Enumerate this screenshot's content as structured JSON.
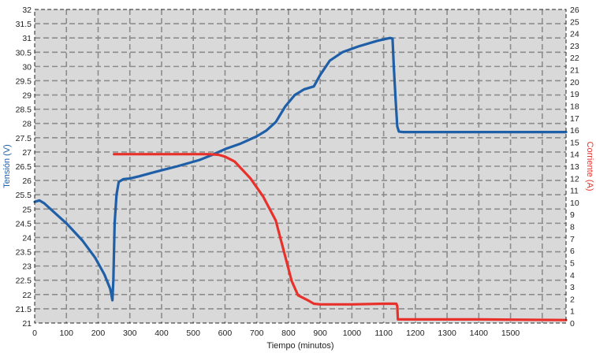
{
  "chart_data": {
    "type": "line",
    "title": "",
    "xlabel": "Tiempo (minutos)",
    "ylabel_left": "Tensión (V)",
    "ylabel_right": "Corriente (A)",
    "xlim": [
      0,
      1675
    ],
    "ylim_left": [
      21,
      32
    ],
    "ylim_right": [
      0,
      26
    ],
    "x_ticks": [
      0,
      100,
      200,
      300,
      400,
      500,
      600,
      700,
      800,
      900,
      1000,
      1100,
      1200,
      1300,
      1400,
      1500
    ],
    "y_left_ticks": [
      21,
      21.5,
      22,
      22.5,
      23,
      23.5,
      24,
      24.5,
      25,
      25.5,
      26,
      26.5,
      27,
      27.5,
      28,
      28.5,
      29,
      29.5,
      30,
      30.5,
      31,
      31.5,
      32
    ],
    "y_right_ticks": [
      0,
      1,
      2,
      3,
      4,
      5,
      6,
      7,
      8,
      9,
      10,
      11,
      12,
      13,
      14,
      15,
      16,
      17,
      18,
      19,
      20,
      21,
      22,
      23,
      24,
      25,
      26
    ],
    "grid": true,
    "colors": {
      "voltage": "#1f5fa8",
      "current": "#e8312a",
      "plot_bg": "#d9d9d9",
      "grid": "#8c8c8c"
    },
    "series": [
      {
        "axis": "left",
        "x": [
          0,
          15,
          30,
          60,
          100,
          150,
          190,
          220,
          238,
          245,
          248,
          252,
          258,
          265,
          280,
          300,
          330,
          380,
          450,
          520,
          560,
          600,
          650,
          700,
          730,
          760,
          790,
          820,
          850,
          880,
          900,
          930,
          970,
          1020,
          1080,
          1120,
          1128,
          1132,
          1138,
          1143,
          1148,
          1160,
          1300,
          1450,
          1675
        ],
        "y": [
          25.25,
          25.3,
          25.2,
          24.9,
          24.5,
          23.9,
          23.3,
          22.7,
          22.2,
          21.8,
          22.5,
          24.5,
          25.5,
          25.95,
          26.05,
          26.07,
          26.15,
          26.3,
          26.5,
          26.72,
          26.9,
          27.1,
          27.3,
          27.55,
          27.75,
          28.05,
          28.6,
          29.0,
          29.2,
          29.3,
          29.7,
          30.2,
          30.5,
          30.7,
          30.9,
          31.0,
          30.98,
          30.0,
          28.8,
          27.9,
          27.72,
          27.7,
          27.7,
          27.7,
          27.7
        ]
      },
      {
        "axis": "right",
        "x": [
          250,
          400,
          550,
          580,
          600,
          630,
          680,
          720,
          760,
          790,
          810,
          830,
          860,
          880,
          900,
          1000,
          1100,
          1140,
          1143,
          1145,
          1200,
          1400,
          1675
        ],
        "y": [
          14.0,
          14.0,
          14.0,
          13.95,
          13.8,
          13.4,
          12.0,
          10.5,
          8.5,
          5.5,
          3.5,
          2.3,
          1.9,
          1.6,
          1.55,
          1.55,
          1.6,
          1.6,
          1.4,
          0.3,
          0.3,
          0.3,
          0.25
        ]
      }
    ]
  }
}
